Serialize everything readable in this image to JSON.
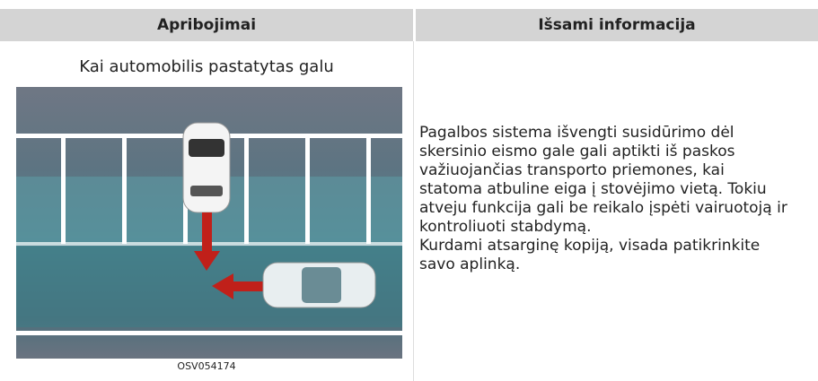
{
  "header": {
    "columns": [
      "Apribojimai",
      "Išsami informacija"
    ]
  },
  "table": {
    "rows": [
      {
        "caption": "Kai automobilis pastatytas galu",
        "image_code": "OSV054174",
        "details": [
          [
            "Pagalbos sistema išvengti susidūrimo dėl",
            "skersinio eismo gale gali aptikti iš paskos",
            "važiuojančias transporto priemones, kai",
            "statoma atbuline eiga į stovėjimo vietą. Tokiu",
            "atveju funkcija gali be reikalo įspėti vairuotoją ir",
            "kontroliuoti stabdymą."
          ],
          [
            "Kurdami atsarginę kopiją, visada patikrinkite",
            "savo aplinką."
          ]
        ]
      }
    ]
  }
}
